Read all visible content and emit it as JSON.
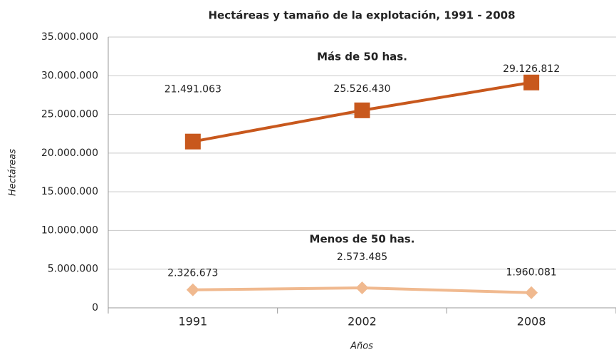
{
  "chart_data": {
    "type": "line",
    "title": "Hectáreas y tamaño de la explotación, 1991 - 2008",
    "x_label": "Años",
    "y_label": "Hectáreas",
    "categories": [
      "1991",
      "2002",
      "2008"
    ],
    "series": [
      {
        "name": "Más de 50 has.",
        "color": "#c8581d",
        "marker": "square",
        "values": [
          21491063,
          25526430,
          29126812
        ],
        "value_labels": [
          "21.491.063",
          "25.526.430",
          "29.126.812"
        ]
      },
      {
        "name": "Menos de 50 has.",
        "color": "#f0b98f",
        "marker": "diamond",
        "values": [
          2326673,
          2573485,
          1960081
        ],
        "value_labels": [
          "2.326.673",
          "2.573.485",
          "1.960.081"
        ]
      }
    ],
    "ylim": [
      0,
      35000000
    ],
    "yticks": [
      0,
      {
        "value": 5000000,
        "label": "5.000.000"
      },
      {
        "value": 10000000,
        "label": "10.000.000"
      },
      {
        "value": 15000000,
        "label": "15.000.000"
      },
      {
        "value": 20000000,
        "label": "20.000.000"
      },
      {
        "value": 25000000,
        "label": "25.000.000"
      },
      {
        "value": 30000000,
        "label": "30.000.000"
      },
      {
        "value": 35000000,
        "label": "35.000.000"
      }
    ],
    "grid": true
  }
}
